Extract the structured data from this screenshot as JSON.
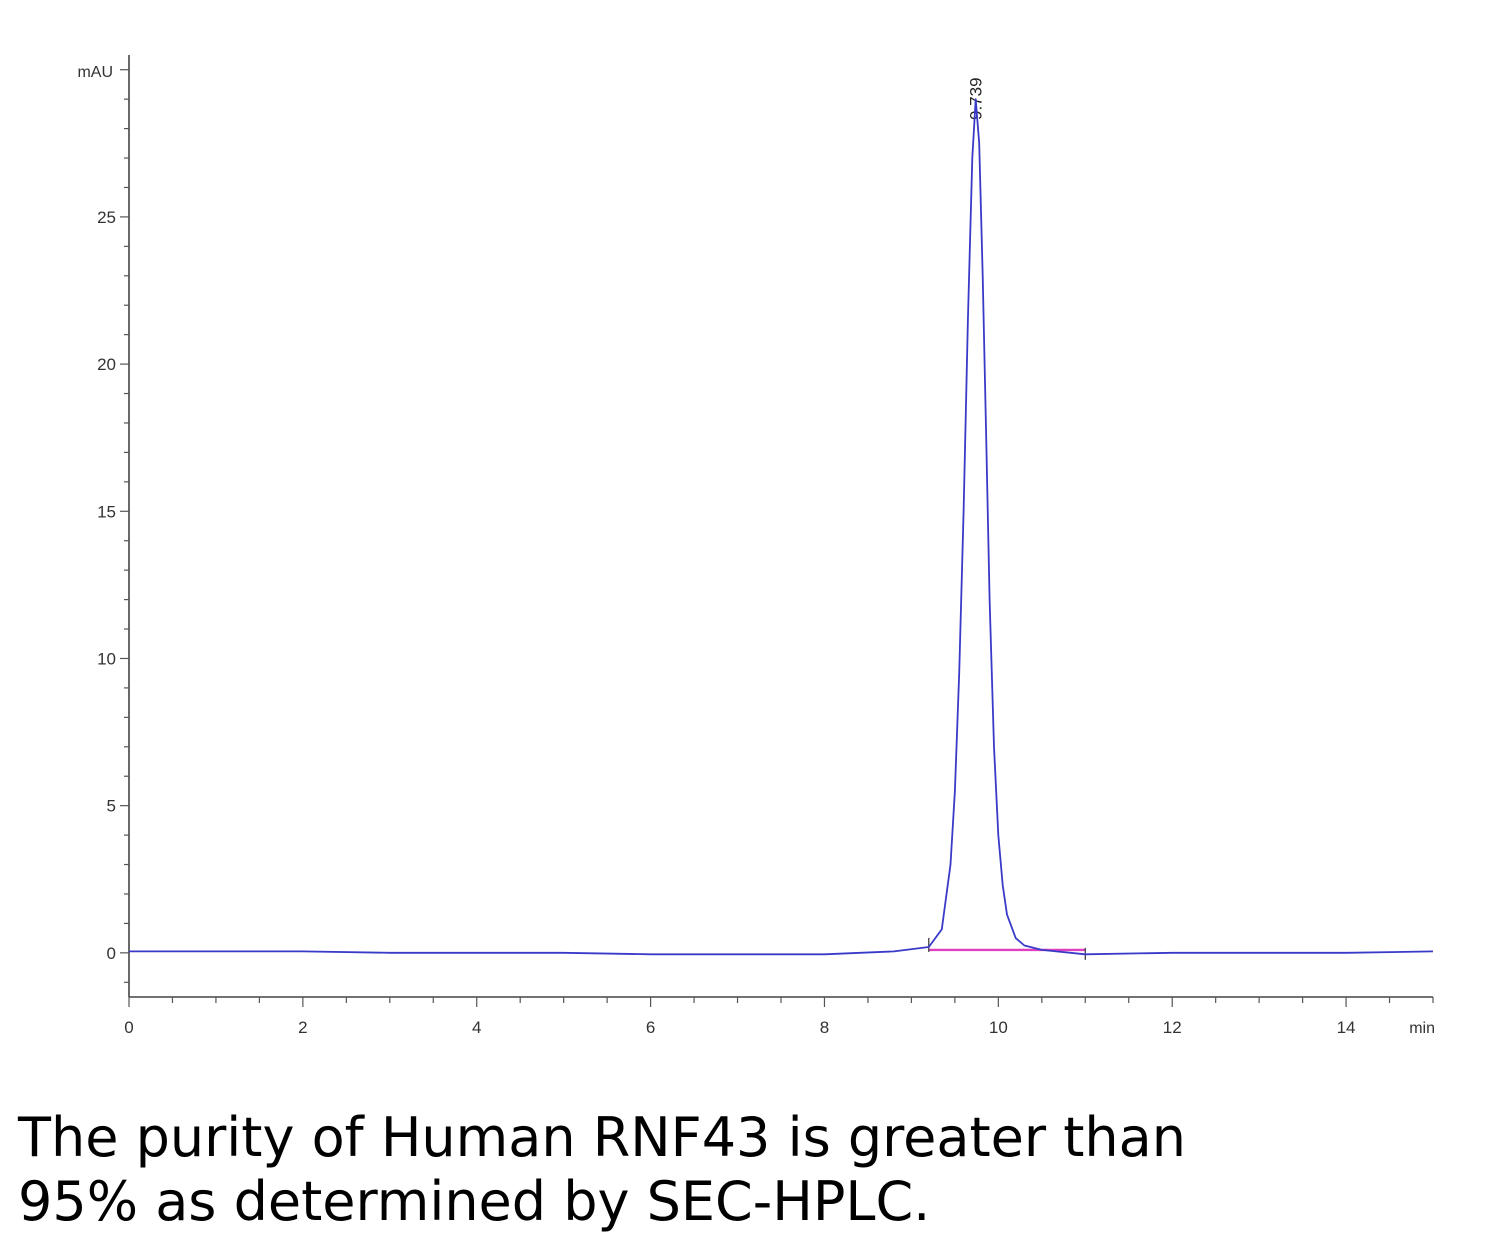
{
  "chart_data": {
    "type": "line",
    "ylabel": "mAU",
    "xlabel": "min",
    "xlim": [
      0,
      15
    ],
    "ylim": [
      -1.5,
      30.5
    ],
    "x_ticks": [
      0,
      2,
      4,
      6,
      8,
      10,
      12,
      14
    ],
    "y_ticks": [
      0,
      5,
      10,
      15,
      20,
      25
    ],
    "grid": false,
    "series": [
      {
        "color": "#3a3ac8",
        "x": [
          0,
          1,
          2,
          3,
          4,
          5,
          6,
          7,
          8,
          8.8,
          9.2,
          9.35,
          9.45,
          9.5,
          9.55,
          9.6,
          9.65,
          9.7,
          9.74,
          9.78,
          9.82,
          9.86,
          9.9,
          9.95,
          10.0,
          10.05,
          10.1,
          10.2,
          10.3,
          10.5,
          11.0,
          12,
          13,
          14,
          15
        ],
        "y": [
          0.05,
          0.05,
          0.05,
          0.0,
          0.0,
          0.0,
          -0.05,
          -0.05,
          -0.05,
          0.05,
          0.2,
          0.8,
          3.0,
          5.5,
          9.5,
          15.0,
          21.5,
          27.0,
          29.0,
          27.5,
          23.0,
          17.5,
          12.0,
          7.0,
          4.0,
          2.3,
          1.3,
          0.5,
          0.25,
          0.1,
          -0.05,
          0.0,
          0.0,
          0.0,
          0.05
        ]
      }
    ],
    "baseline": {
      "color": "#e040c0",
      "x_start": 9.2,
      "x_end": 11.0,
      "y": 0.1
    },
    "annotations": [
      {
        "text": "9.739",
        "x": 9.739
      }
    ]
  },
  "caption": {
    "line1": "The purity of Human RNF43 is greater than",
    "line2": "95% as determined by SEC-HPLC."
  }
}
